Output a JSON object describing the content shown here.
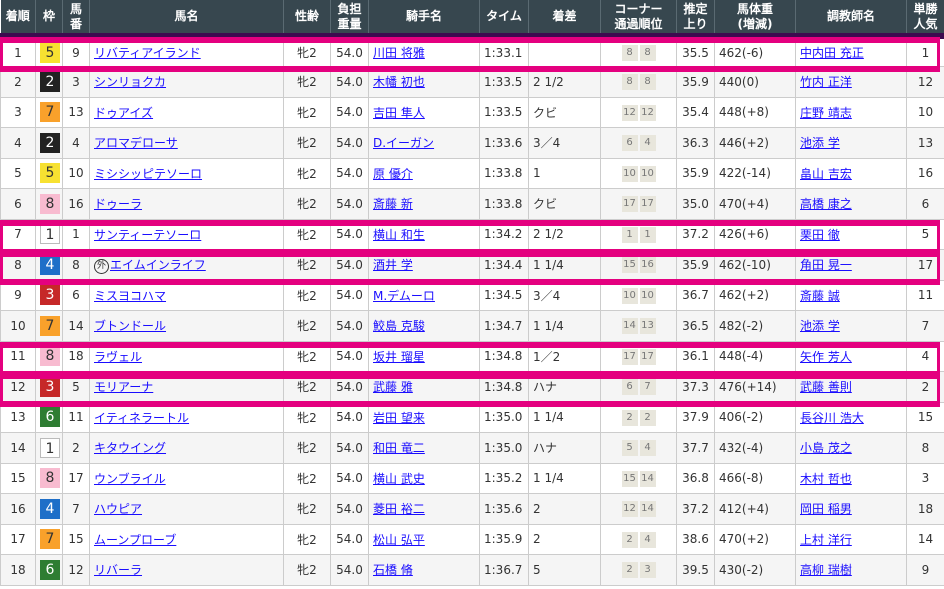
{
  "headers": [
    "着順",
    "枠",
    "馬\n番",
    "馬名",
    "性齢",
    "負担\n重量",
    "騎手名",
    "タイム",
    "着差",
    "コーナー\n通過順位",
    "推定\n上り",
    "馬体重\n(増減)",
    "調教師名",
    "単勝\n人気"
  ],
  "waku_colors": {
    "1": "#ffffff",
    "2": "#222222",
    "3": "#c62828",
    "4": "#1e6fc8",
    "5": "#f7e131",
    "6": "#2e7d32",
    "7": "#f9a12b",
    "8": "#f8bbd0"
  },
  "highlight_color": "#e4007f",
  "highlighted_ranks": [
    1,
    7,
    8,
    11,
    12
  ],
  "rows": [
    {
      "rank": "1",
      "waku": "5",
      "num": "9",
      "horse": "リバティアイランド",
      "sexage": "牝2",
      "weight": "54.0",
      "jockey": "川田 将雅",
      "time": "1:33.1",
      "margin": "",
      "corner": [
        "8",
        "8"
      ],
      "last3f": "35.5",
      "bw": "462",
      "bwdiff": "(-6)",
      "trainer": "中内田 充正",
      "pop": "1"
    },
    {
      "rank": "2",
      "waku": "2",
      "num": "3",
      "horse": "シンリョクカ",
      "sexage": "牝2",
      "weight": "54.0",
      "jockey": "木幡 初也",
      "time": "1:33.5",
      "margin": "2 1/2",
      "corner": [
        "8",
        "8"
      ],
      "last3f": "35.9",
      "bw": "440",
      "bwdiff": "(0)",
      "trainer": "竹内 正洋",
      "pop": "12"
    },
    {
      "rank": "3",
      "waku": "7",
      "num": "13",
      "horse": "ドゥアイズ",
      "sexage": "牝2",
      "weight": "54.0",
      "jockey": "吉田 隼人",
      "time": "1:33.5",
      "margin": "クビ",
      "corner": [
        "12",
        "12"
      ],
      "last3f": "35.4",
      "bw": "448",
      "bwdiff": "(+8)",
      "trainer": "庄野 靖志",
      "pop": "10"
    },
    {
      "rank": "4",
      "waku": "2",
      "num": "4",
      "horse": "アロマデローサ",
      "sexage": "牝2",
      "weight": "54.0",
      "jockey": "D.イーガン",
      "time": "1:33.6",
      "margin": "3／4",
      "corner": [
        "6",
        "4"
      ],
      "last3f": "36.3",
      "bw": "446",
      "bwdiff": "(+2)",
      "trainer": "池添 学",
      "pop": "13"
    },
    {
      "rank": "5",
      "waku": "5",
      "num": "10",
      "horse": "ミシシッピテソーロ",
      "sexage": "牝2",
      "weight": "54.0",
      "jockey": "原 優介",
      "time": "1:33.8",
      "margin": "1",
      "corner": [
        "10",
        "10"
      ],
      "last3f": "35.9",
      "bw": "422",
      "bwdiff": "(-14)",
      "trainer": "畠山 吉宏",
      "pop": "16"
    },
    {
      "rank": "6",
      "waku": "8",
      "num": "16",
      "horse": "ドゥーラ",
      "sexage": "牝2",
      "weight": "54.0",
      "jockey": "斎藤 新",
      "time": "1:33.8",
      "margin": "クビ",
      "corner": [
        "17",
        "17"
      ],
      "last3f": "35.0",
      "bw": "470",
      "bwdiff": "(+4)",
      "trainer": "高橋 康之",
      "pop": "6"
    },
    {
      "rank": "7",
      "waku": "1",
      "num": "1",
      "horse": "サンティーテソーロ",
      "sexage": "牝2",
      "weight": "54.0",
      "jockey": "横山 和生",
      "time": "1:34.2",
      "margin": "2 1/2",
      "corner": [
        "1",
        "1"
      ],
      "last3f": "37.2",
      "bw": "426",
      "bwdiff": "(+6)",
      "trainer": "栗田 徹",
      "pop": "5"
    },
    {
      "rank": "8",
      "waku": "4",
      "num": "8",
      "mark": "外",
      "horse": "エイムインライフ",
      "sexage": "牝2",
      "weight": "54.0",
      "jockey": "酒井 学",
      "time": "1:34.4",
      "margin": "1 1/4",
      "corner": [
        "15",
        "16"
      ],
      "last3f": "35.9",
      "bw": "462",
      "bwdiff": "(-10)",
      "trainer": "角田 晃一",
      "pop": "17"
    },
    {
      "rank": "9",
      "waku": "3",
      "num": "6",
      "horse": "ミスヨコハマ",
      "sexage": "牝2",
      "weight": "54.0",
      "jockey": "M.デムーロ",
      "time": "1:34.5",
      "margin": "3／4",
      "corner": [
        "10",
        "10"
      ],
      "last3f": "36.7",
      "bw": "462",
      "bwdiff": "(+2)",
      "trainer": "斎藤 誠",
      "pop": "11"
    },
    {
      "rank": "10",
      "waku": "7",
      "num": "14",
      "horse": "ブトンドール",
      "sexage": "牝2",
      "weight": "54.0",
      "jockey": "鮫島 克駿",
      "time": "1:34.7",
      "margin": "1 1/4",
      "corner": [
        "14",
        "13"
      ],
      "last3f": "36.5",
      "bw": "482",
      "bwdiff": "(-2)",
      "trainer": "池添 学",
      "pop": "7"
    },
    {
      "rank": "11",
      "waku": "8",
      "num": "18",
      "horse": "ラヴェル",
      "sexage": "牝2",
      "weight": "54.0",
      "jockey": "坂井 瑠星",
      "time": "1:34.8",
      "margin": "1／2",
      "corner": [
        "17",
        "17"
      ],
      "last3f": "36.1",
      "bw": "448",
      "bwdiff": "(-4)",
      "trainer": "矢作 芳人",
      "pop": "4"
    },
    {
      "rank": "12",
      "waku": "3",
      "num": "5",
      "horse": "モリアーナ",
      "sexage": "牝2",
      "weight": "54.0",
      "jockey": "武藤 雅",
      "time": "1:34.8",
      "margin": "ハナ",
      "corner": [
        "6",
        "7"
      ],
      "last3f": "37.3",
      "bw": "476",
      "bwdiff": "(+14)",
      "trainer": "武藤 善則",
      "pop": "2"
    },
    {
      "rank": "13",
      "waku": "6",
      "num": "11",
      "horse": "イティネラートル",
      "sexage": "牝2",
      "weight": "54.0",
      "jockey": "岩田 望来",
      "time": "1:35.0",
      "margin": "1 1/4",
      "corner": [
        "2",
        "2"
      ],
      "last3f": "37.9",
      "bw": "406",
      "bwdiff": "(-2)",
      "trainer": "長谷川 浩大",
      "pop": "15"
    },
    {
      "rank": "14",
      "waku": "1",
      "num": "2",
      "horse": "キタウイング",
      "sexage": "牝2",
      "weight": "54.0",
      "jockey": "和田 竜二",
      "time": "1:35.0",
      "margin": "ハナ",
      "corner": [
        "5",
        "4"
      ],
      "last3f": "37.7",
      "bw": "432",
      "bwdiff": "(-4)",
      "trainer": "小島 茂之",
      "pop": "8"
    },
    {
      "rank": "15",
      "waku": "8",
      "num": "17",
      "horse": "ウンブライル",
      "sexage": "牝2",
      "weight": "54.0",
      "jockey": "横山 武史",
      "time": "1:35.2",
      "margin": "1 1/4",
      "corner": [
        "15",
        "14"
      ],
      "last3f": "36.8",
      "bw": "466",
      "bwdiff": "(-8)",
      "trainer": "木村 哲也",
      "pop": "3"
    },
    {
      "rank": "16",
      "waku": "4",
      "num": "7",
      "horse": "ハウピア",
      "sexage": "牝2",
      "weight": "54.0",
      "jockey": "菱田 裕二",
      "time": "1:35.6",
      "margin": "2",
      "corner": [
        "12",
        "14"
      ],
      "last3f": "37.2",
      "bw": "412",
      "bwdiff": "(+4)",
      "trainer": "岡田 稲男",
      "pop": "18"
    },
    {
      "rank": "17",
      "waku": "7",
      "num": "15",
      "horse": "ムーンプローブ",
      "sexage": "牝2",
      "weight": "54.0",
      "jockey": "松山 弘平",
      "time": "1:35.9",
      "margin": "2",
      "corner": [
        "2",
        "4"
      ],
      "last3f": "38.6",
      "bw": "470",
      "bwdiff": "(+2)",
      "trainer": "上村 洋行",
      "pop": "14"
    },
    {
      "rank": "18",
      "waku": "6",
      "num": "12",
      "horse": "リバーラ",
      "sexage": "牝2",
      "weight": "54.0",
      "jockey": "石橋 脩",
      "time": "1:36.7",
      "margin": "5",
      "corner": [
        "2",
        "3"
      ],
      "last3f": "39.5",
      "bw": "430",
      "bwdiff": "(-2)",
      "trainer": "高柳 瑞樹",
      "pop": "9"
    }
  ]
}
